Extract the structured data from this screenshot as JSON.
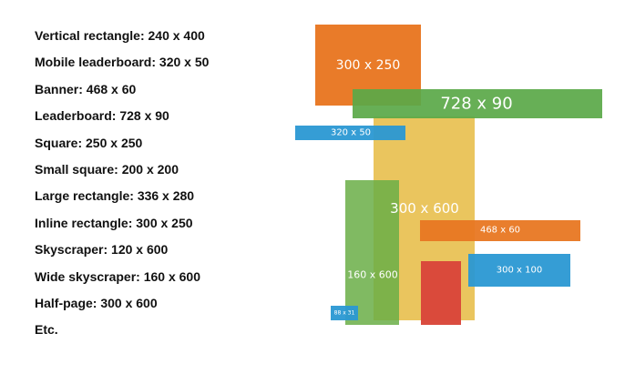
{
  "sizes_list": [
    "Vertical rectangle: 240 x 400",
    "Mobile leaderboard: 320 x 50",
    "Banner: 468 x 60",
    "Leaderboard: 728 x 90",
    "Square: 250 x 250",
    "Small square: 200 x 200",
    "Large rectangle: 336 x 280",
    "Inline rectangle: 300 x 250",
    "Skyscraper: 120 x 600",
    "Wide skyscraper: 160 x 600",
    "Half-page: 300 x 600",
    "Etc."
  ],
  "diagram": {
    "half_page": {
      "label": "300 x 600",
      "color": "#E8C152"
    },
    "inline_rectangle": {
      "label": "300 x 250",
      "color": "#E87722"
    },
    "leaderboard": {
      "label": "728 x 90",
      "color": "#5AA848"
    },
    "mobile_leaderboard": {
      "label": "320 x 50",
      "color": "#2A98D3"
    },
    "wide_skyscraper": {
      "label": "160 x 600",
      "color": "#6AAE47"
    },
    "banner": {
      "label": "468 x 60",
      "color": "#E87722"
    },
    "medium_box": {
      "label": "300 x 100",
      "color": "#2A98D3"
    },
    "tall_red_box": {
      "label": "",
      "color": "#D9463A"
    },
    "button_small": {
      "label": "88 x 31",
      "color": "#2A98D3"
    }
  }
}
